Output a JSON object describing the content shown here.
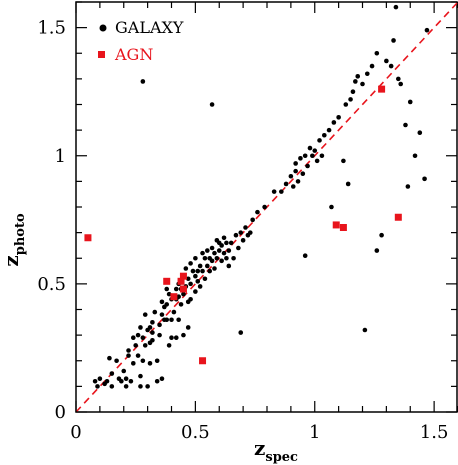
{
  "chart_data": {
    "type": "scatter",
    "xlabel": "z",
    "xlabel_sub": "spec",
    "ylabel": "z",
    "ylabel_sub": "photo",
    "xlim": [
      0,
      1.6
    ],
    "ylim": [
      0,
      1.6
    ],
    "x_ticks": [
      0,
      0.5,
      1,
      1.5
    ],
    "x_tick_labels": [
      "0",
      "0.5",
      "1",
      "1.5"
    ],
    "y_ticks": [
      0,
      0.5,
      1,
      1.5
    ],
    "y_tick_labels": [
      "0",
      "0.5",
      "1",
      "1.5"
    ],
    "grid": false,
    "legend_position": "top-left",
    "reference_line": {
      "style": "dashed",
      "color": "#e8141c",
      "x": [
        0,
        1.6
      ],
      "y": [
        0,
        1.6
      ]
    },
    "series": [
      {
        "name": "GALAXY",
        "marker": "circle",
        "color": "#000000",
        "points": [
          [
            0.08,
            0.12
          ],
          [
            0.09,
            0.1
          ],
          [
            0.1,
            0.13
          ],
          [
            0.12,
            0.11
          ],
          [
            0.13,
            0.12
          ],
          [
            0.14,
            0.21
          ],
          [
            0.15,
            0.15
          ],
          [
            0.15,
            0.1
          ],
          [
            0.17,
            0.2
          ],
          [
            0.18,
            0.13
          ],
          [
            0.19,
            0.12
          ],
          [
            0.2,
            0.16
          ],
          [
            0.21,
            0.1
          ],
          [
            0.21,
            0.13
          ],
          [
            0.22,
            0.22
          ],
          [
            0.22,
            0.24
          ],
          [
            0.23,
            0.12
          ],
          [
            0.24,
            0.19
          ],
          [
            0.24,
            0.29
          ],
          [
            0.25,
            0.26
          ],
          [
            0.26,
            0.22
          ],
          [
            0.26,
            0.3
          ],
          [
            0.27,
            0.14
          ],
          [
            0.27,
            0.1
          ],
          [
            0.27,
            0.33
          ],
          [
            0.28,
            0.29
          ],
          [
            0.28,
            0.2
          ],
          [
            0.29,
            0.26
          ],
          [
            0.29,
            0.38
          ],
          [
            0.3,
            0.32
          ],
          [
            0.3,
            0.1
          ],
          [
            0.31,
            0.27
          ],
          [
            0.31,
            0.33
          ],
          [
            0.31,
            0.19
          ],
          [
            0.32,
            0.28
          ],
          [
            0.32,
            0.35
          ],
          [
            0.32,
            0.31
          ],
          [
            0.33,
            0.39
          ],
          [
            0.34,
            0.2
          ],
          [
            0.34,
            0.12
          ],
          [
            0.35,
            0.34
          ],
          [
            0.35,
            0.3
          ],
          [
            0.36,
            0.43
          ],
          [
            0.36,
            0.38
          ],
          [
            0.36,
            0.13
          ],
          [
            0.37,
            0.36
          ],
          [
            0.37,
            0.41
          ],
          [
            0.38,
            0.42
          ],
          [
            0.38,
            0.36
          ],
          [
            0.38,
            0.48
          ],
          [
            0.39,
            0.46
          ],
          [
            0.39,
            0.26
          ],
          [
            0.4,
            0.44
          ],
          [
            0.4,
            0.29
          ],
          [
            0.4,
            0.36
          ],
          [
            0.41,
            0.45
          ],
          [
            0.41,
            0.39
          ],
          [
            0.42,
            0.48
          ],
          [
            0.42,
            0.44
          ],
          [
            0.42,
            0.29
          ],
          [
            0.43,
            0.5
          ],
          [
            0.43,
            0.45
          ],
          [
            0.43,
            0.36
          ],
          [
            0.44,
            0.42
          ],
          [
            0.44,
            0.48
          ],
          [
            0.45,
            0.53
          ],
          [
            0.45,
            0.46
          ],
          [
            0.45,
            0.3
          ],
          [
            0.46,
            0.49
          ],
          [
            0.46,
            0.56
          ],
          [
            0.47,
            0.52
          ],
          [
            0.47,
            0.43
          ],
          [
            0.47,
            0.33
          ],
          [
            0.48,
            0.5
          ],
          [
            0.48,
            0.58
          ],
          [
            0.48,
            0.44
          ],
          [
            0.49,
            0.55
          ],
          [
            0.5,
            0.53
          ],
          [
            0.5,
            0.6
          ],
          [
            0.5,
            0.47
          ],
          [
            0.51,
            0.51
          ],
          [
            0.51,
            0.55
          ],
          [
            0.52,
            0.49
          ],
          [
            0.52,
            0.57
          ],
          [
            0.53,
            0.62
          ],
          [
            0.53,
            0.55
          ],
          [
            0.54,
            0.52
          ],
          [
            0.54,
            0.6
          ],
          [
            0.55,
            0.57
          ],
          [
            0.55,
            0.63
          ],
          [
            0.56,
            0.6
          ],
          [
            0.56,
            0.55
          ],
          [
            0.57,
            0.64
          ],
          [
            0.57,
            0.59
          ],
          [
            0.58,
            0.62
          ],
          [
            0.58,
            0.56
          ],
          [
            0.59,
            0.67
          ],
          [
            0.59,
            0.6
          ],
          [
            0.6,
            0.63
          ],
          [
            0.6,
            0.66
          ],
          [
            0.61,
            0.59
          ],
          [
            0.61,
            0.65
          ],
          [
            0.62,
            0.62
          ],
          [
            0.62,
            0.68
          ],
          [
            0.63,
            0.6
          ],
          [
            0.63,
            0.66
          ],
          [
            0.64,
            0.63
          ],
          [
            0.64,
            0.57
          ],
          [
            0.65,
            0.66
          ],
          [
            0.66,
            0.6
          ],
          [
            0.67,
            0.69
          ],
          [
            0.68,
            0.64
          ],
          [
            0.69,
            0.7
          ],
          [
            0.7,
            0.67
          ],
          [
            0.71,
            0.72
          ],
          [
            0.72,
            0.69
          ],
          [
            0.73,
            0.7
          ],
          [
            0.74,
            0.75
          ],
          [
            0.76,
            0.78
          ],
          [
            0.79,
            0.8
          ],
          [
            0.83,
            0.86
          ],
          [
            0.86,
            0.86
          ],
          [
            0.88,
            0.89
          ],
          [
            0.9,
            0.92
          ],
          [
            0.91,
            0.88
          ],
          [
            0.92,
            0.94
          ],
          [
            0.92,
            0.97
          ],
          [
            0.93,
            0.9
          ],
          [
            0.94,
            0.99
          ],
          [
            0.95,
            0.93
          ],
          [
            0.96,
            1.0
          ],
          [
            0.97,
            0.96
          ],
          [
            0.98,
            1.03
          ],
          [
            0.99,
            1.0
          ],
          [
            1.0,
            1.02
          ],
          [
            1.01,
            0.98
          ],
          [
            1.02,
            1.06
          ],
          [
            1.03,
            1.0
          ],
          [
            1.04,
            1.08
          ],
          [
            1.06,
            1.1
          ],
          [
            1.08,
            1.13
          ],
          [
            1.1,
            1.15
          ],
          [
            1.12,
            0.98
          ],
          [
            1.13,
            1.2
          ],
          [
            1.15,
            1.22
          ],
          [
            1.16,
            1.25
          ],
          [
            1.17,
            1.29
          ],
          [
            1.18,
            1.31
          ],
          [
            1.2,
            1.28
          ],
          [
            1.22,
            1.32
          ],
          [
            1.24,
            1.35
          ],
          [
            1.26,
            1.4
          ],
          [
            1.3,
            1.37
          ],
          [
            1.32,
            1.35
          ],
          [
            1.33,
            1.45
          ],
          [
            1.35,
            1.3
          ],
          [
            1.36,
            1.28
          ],
          [
            1.38,
            1.12
          ],
          [
            1.4,
            1.21
          ],
          [
            1.42,
            1.0
          ],
          [
            1.44,
            1.09
          ],
          [
            1.47,
            1.49
          ],
          [
            0.28,
            1.29
          ],
          [
            0.57,
            1.2
          ],
          [
            0.69,
            0.31
          ],
          [
            0.96,
            0.61
          ],
          [
            1.07,
            0.8
          ],
          [
            1.14,
            0.89
          ],
          [
            1.21,
            0.32
          ],
          [
            1.26,
            0.63
          ],
          [
            1.28,
            0.69
          ],
          [
            1.39,
            0.88
          ],
          [
            1.34,
            1.58
          ],
          [
            1.46,
            0.91
          ]
        ]
      },
      {
        "name": "AGN",
        "marker": "square",
        "color": "#e8141c",
        "points": [
          [
            0.05,
            0.68
          ],
          [
            0.38,
            0.51
          ],
          [
            0.41,
            0.45
          ],
          [
            0.44,
            0.51
          ],
          [
            0.45,
            0.53
          ],
          [
            0.45,
            0.48
          ],
          [
            0.53,
            0.2
          ],
          [
            1.09,
            0.73
          ],
          [
            1.12,
            0.72
          ],
          [
            1.28,
            1.26
          ],
          [
            1.35,
            0.76
          ]
        ]
      }
    ]
  }
}
